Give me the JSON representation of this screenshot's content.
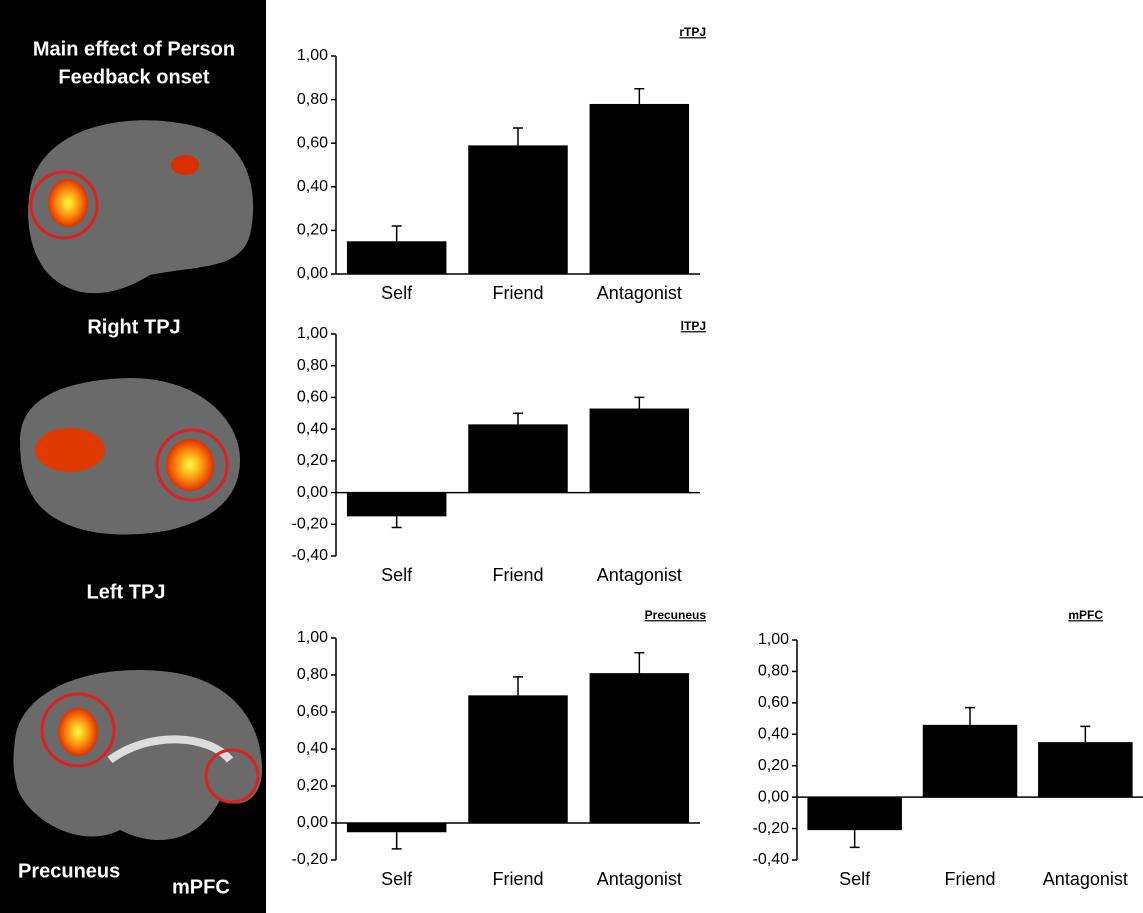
{
  "panel": {
    "title": [
      "Main effect of Person",
      "Feedback onset"
    ],
    "labels": [
      "Right TPJ",
      "Left TPJ",
      "Precuneus",
      "mPFC"
    ]
  },
  "chart_data": [
    {
      "type": "bar",
      "title": "rTPJ",
      "categories": [
        "Self",
        "Friend",
        "Antagonist"
      ],
      "values": [
        0.15,
        0.59,
        0.78
      ],
      "errors": [
        0.07,
        0.08,
        0.07
      ],
      "color": "#000000",
      "ylim": [
        0,
        1
      ],
      "yticks": [
        {
          "value": 0,
          "label": "0,00"
        },
        {
          "value": 0.2,
          "label": "0,20"
        },
        {
          "value": 0.4,
          "label": "0,40"
        },
        {
          "value": 0.6,
          "label": "0,60"
        },
        {
          "value": 0.8,
          "label": "0,80"
        },
        {
          "value": 1,
          "label": "1,00"
        }
      ]
    },
    {
      "type": "bar",
      "title": "lTPJ",
      "categories": [
        "Self",
        "Friend",
        "Antagonist"
      ],
      "values": [
        -0.15,
        0.43,
        0.53
      ],
      "errors": [
        0.07,
        0.07,
        0.07
      ],
      "color": "#000000",
      "ylim": [
        -0.4,
        1
      ],
      "yticks": [
        {
          "value": -0.4,
          "label": "-0,40"
        },
        {
          "value": -0.2,
          "label": "-0,20"
        },
        {
          "value": 0,
          "label": "0,00"
        },
        {
          "value": 0.2,
          "label": "0,20"
        },
        {
          "value": 0.4,
          "label": "0,40"
        },
        {
          "value": 0.6,
          "label": "0,60"
        },
        {
          "value": 0.8,
          "label": "0,80"
        },
        {
          "value": 1,
          "label": "1,00"
        }
      ]
    },
    {
      "type": "bar",
      "title": "Precuneus",
      "categories": [
        "Self",
        "Friend",
        "Antagonist"
      ],
      "values": [
        -0.05,
        0.69,
        0.81
      ],
      "errors": [
        0.09,
        0.1,
        0.11
      ],
      "color": "#000000",
      "ylim": [
        -0.2,
        1
      ],
      "yticks": [
        {
          "value": -0.2,
          "label": "-0,20"
        },
        {
          "value": 0,
          "label": "0,00"
        },
        {
          "value": 0.2,
          "label": "0,20"
        },
        {
          "value": 0.4,
          "label": "0,40"
        },
        {
          "value": 0.6,
          "label": "0,60"
        },
        {
          "value": 0.8,
          "label": "0,80"
        },
        {
          "value": 1,
          "label": "1,00"
        }
      ]
    },
    {
      "type": "bar",
      "title": "mPFC",
      "categories": [
        "Self",
        "Friend",
        "Antagonist"
      ],
      "values": [
        -0.21,
        0.46,
        0.35
      ],
      "errors": [
        0.11,
        0.11,
        0.1
      ],
      "color": "#000000",
      "ylim": [
        -0.4,
        1
      ],
      "yticks": [
        {
          "value": -0.4,
          "label": "-0,40"
        },
        {
          "value": -0.2,
          "label": "-0,20"
        },
        {
          "value": 0,
          "label": "0,00"
        },
        {
          "value": 0.2,
          "label": "0,20"
        },
        {
          "value": 0.4,
          "label": "0,40"
        },
        {
          "value": 0.6,
          "label": "0,60"
        },
        {
          "value": 0.8,
          "label": "0,80"
        },
        {
          "value": 1,
          "label": "1,00"
        }
      ]
    }
  ]
}
